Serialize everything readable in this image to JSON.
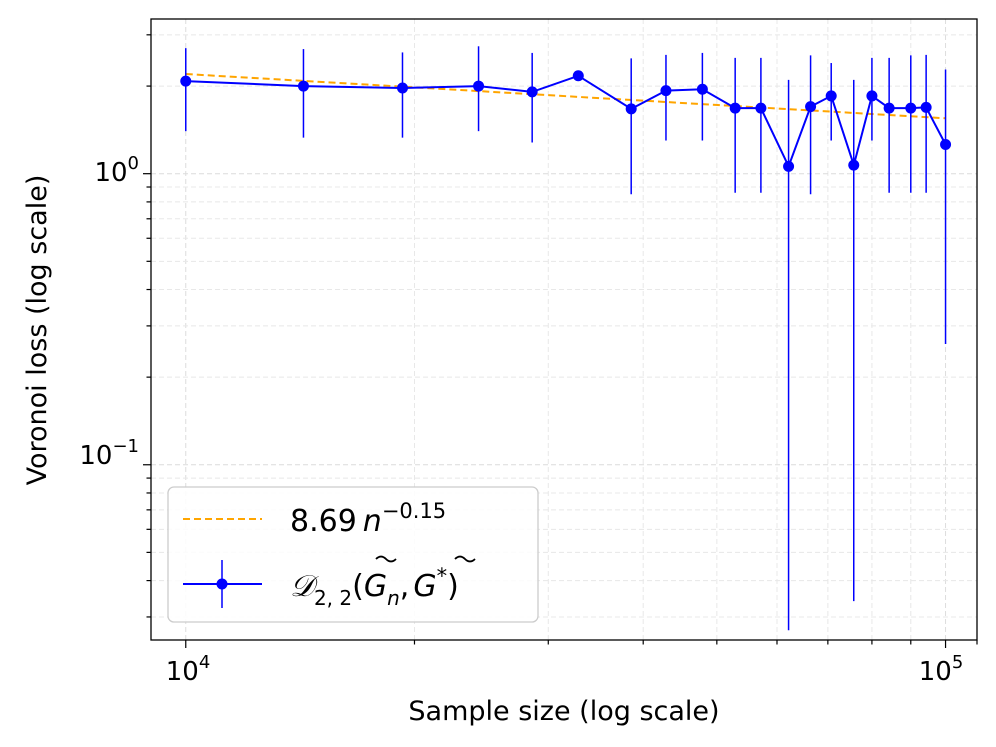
{
  "chart_data": {
    "type": "line",
    "title": "",
    "xlabel": "Sample size (log scale)",
    "ylabel": "Voronoi loss (log scale)",
    "xscale": "log",
    "yscale": "log",
    "xlim": [
      9000,
      110000
    ],
    "ylim": [
      0.025,
      3.4
    ],
    "x_ticks": [
      {
        "value": 10000,
        "base": "10",
        "exp": "4"
      },
      {
        "value": 100000,
        "base": "10",
        "exp": "5"
      }
    ],
    "y_ticks": [
      {
        "value": 1.0,
        "base": "10",
        "exp": "0"
      },
      {
        "value": 0.1,
        "base": "10",
        "exp": "−1"
      }
    ],
    "legend_position": "lower-left",
    "grid": true,
    "series": [
      {
        "name": "8.69 n^{-0.15}",
        "kind": "fit",
        "style": "dashed",
        "color": "#ffa500",
        "legend_label": {
          "coef": "8.69",
          "var": "n",
          "exp": "−0.15"
        },
        "x": [
          10000,
          100000
        ],
        "y": [
          2.2,
          1.55
        ]
      },
      {
        "name": "D_{2,2}(G_n, G*)",
        "kind": "errorbar",
        "style": "solid",
        "color": "#0000ff",
        "legend_label": {
          "text": "𝒟",
          "sub": "2, 2",
          "open": "(",
          "g1": "G",
          "g1sub": "n",
          "sep": ",",
          "g2": "G",
          "g2sup": "*",
          "close": ")"
        },
        "x": [
          10000,
          14286,
          19286,
          24286,
          28571,
          32857,
          38571,
          42857,
          47857,
          52857,
          57143,
          62143,
          66429,
          70714,
          75714,
          80000,
          84286,
          90000,
          94286,
          100000
        ],
        "y": [
          2.08,
          2.0,
          1.97,
          2.0,
          1.91,
          2.17,
          1.67,
          1.93,
          1.95,
          1.68,
          1.68,
          1.06,
          1.7,
          1.85,
          1.07,
          1.85,
          1.68,
          1.68,
          1.69,
          1.26
        ],
        "y_lower": [
          1.4,
          1.33,
          1.33,
          1.4,
          1.28,
          2.17,
          0.85,
          1.3,
          1.3,
          0.86,
          0.86,
          0.027,
          0.85,
          1.3,
          0.034,
          1.3,
          0.86,
          0.86,
          0.86,
          0.26
        ],
        "y_upper": [
          2.7,
          2.68,
          2.61,
          2.74,
          2.6,
          2.17,
          2.49,
          2.56,
          2.6,
          2.5,
          2.5,
          2.1,
          2.55,
          2.4,
          2.1,
          2.5,
          2.5,
          2.55,
          2.56,
          2.28
        ]
      }
    ]
  }
}
